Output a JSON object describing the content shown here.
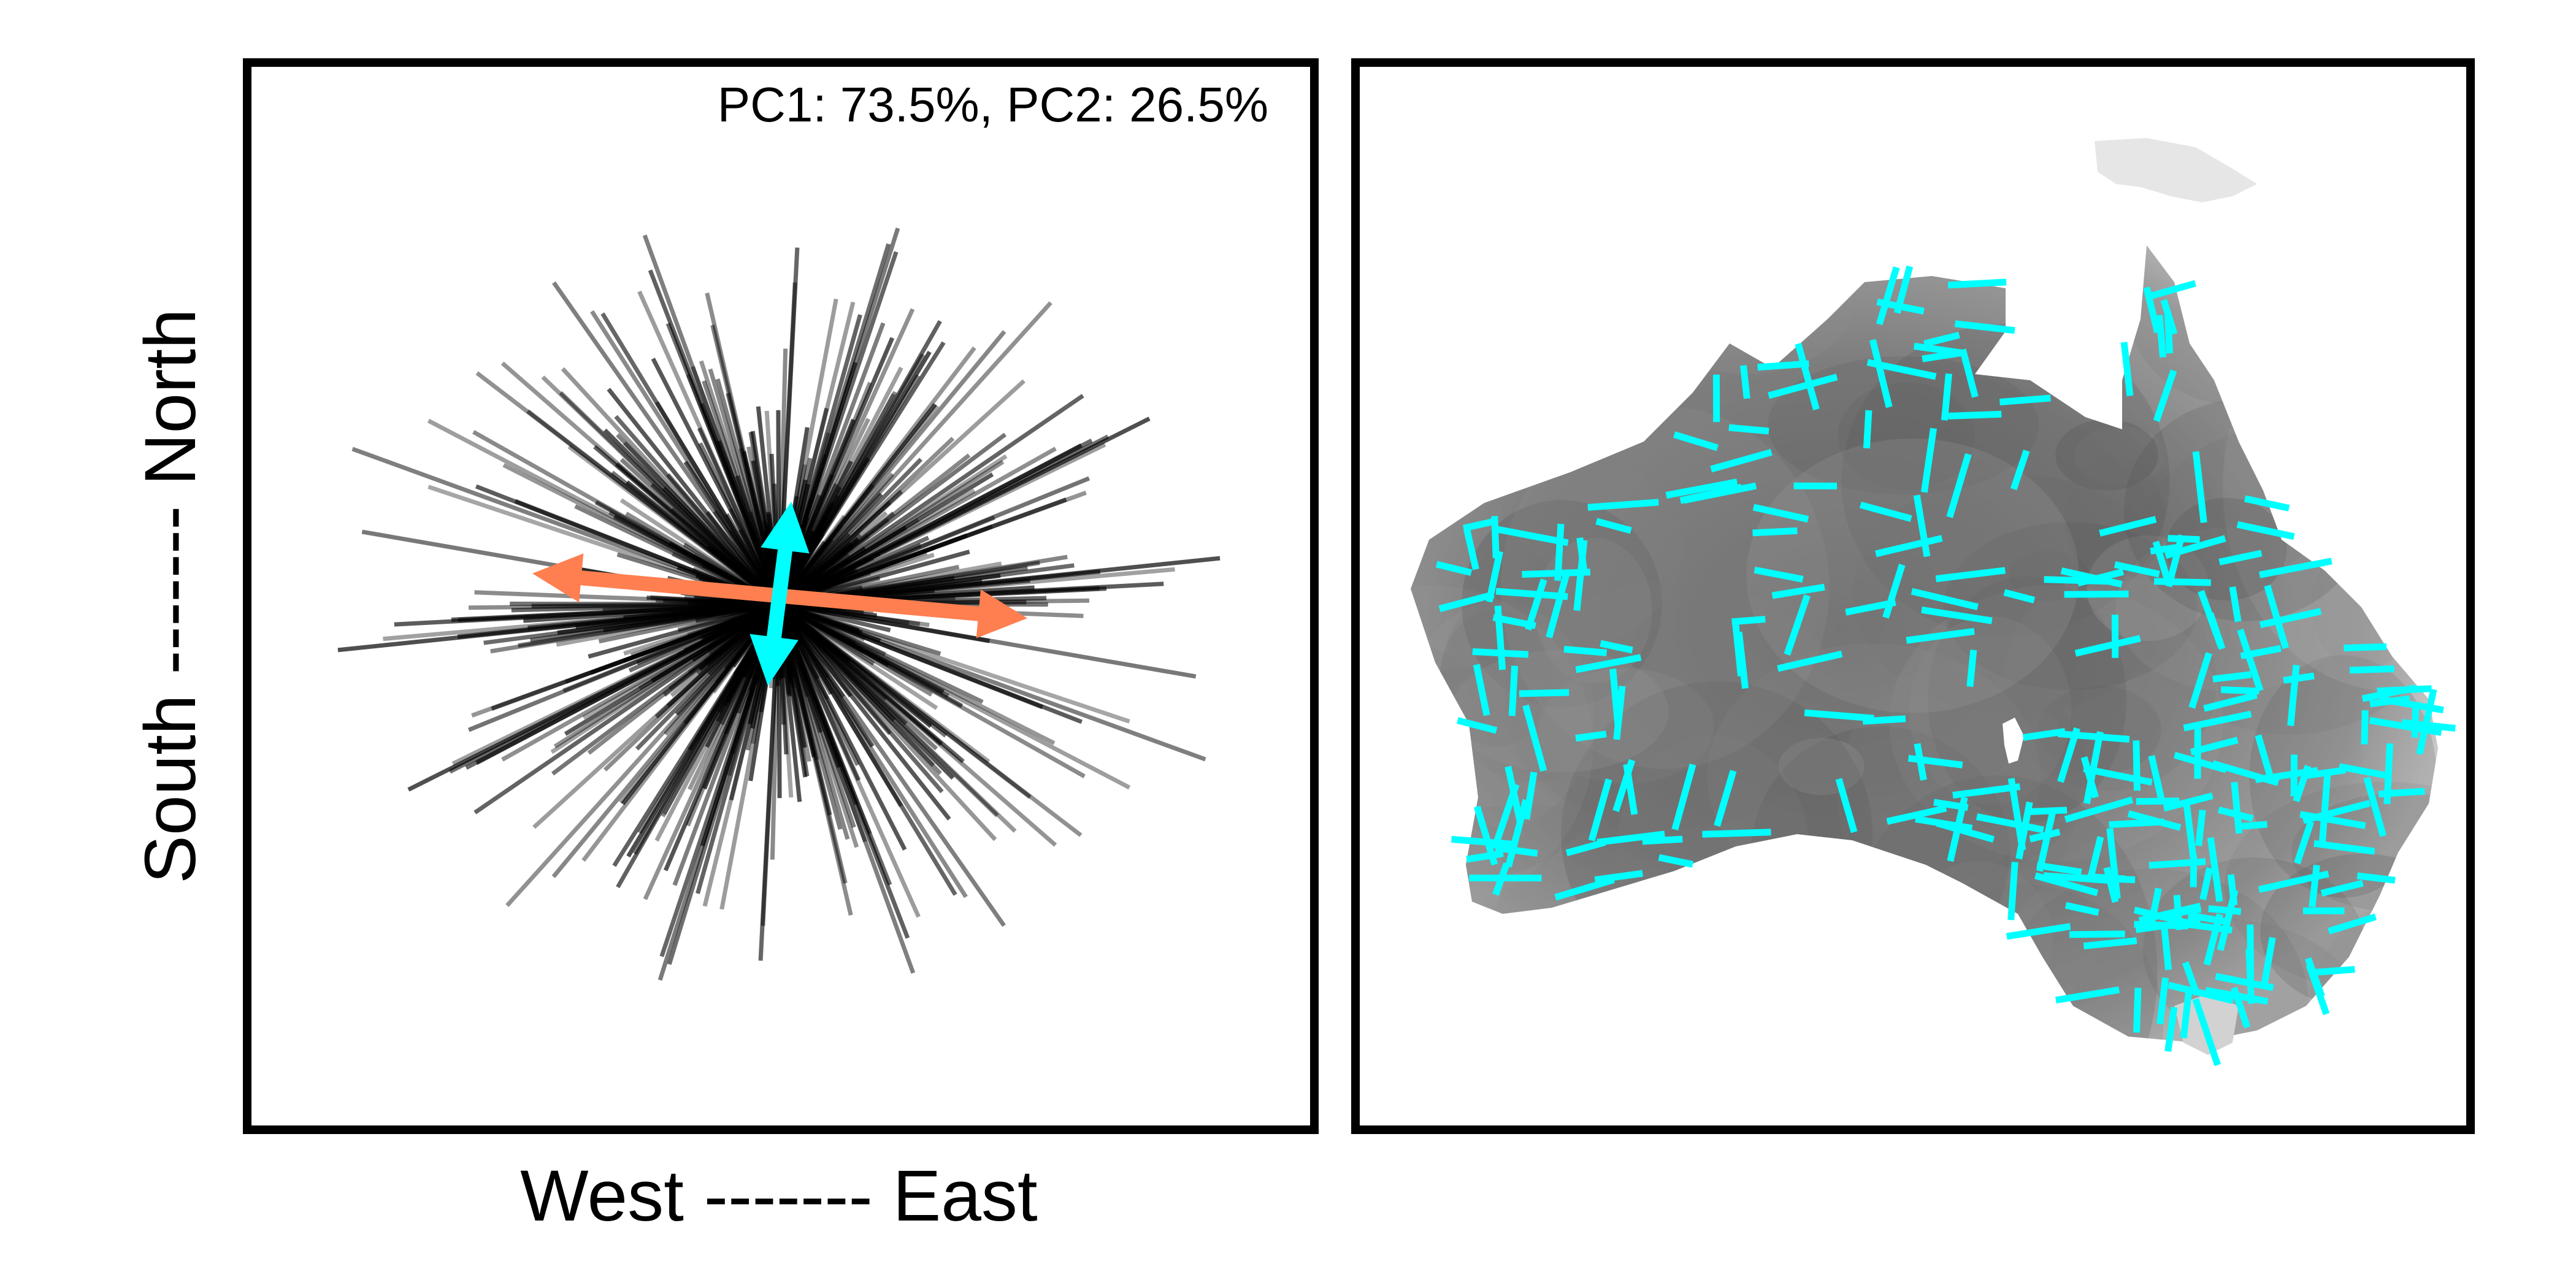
{
  "chart_data": [
    {
      "type": "scatter",
      "panel": "left",
      "annotation": "PC1: 73.5%, PC2: 26.5%",
      "xlabel": "West ------- East",
      "ylabel": "South ------- North",
      "pc1_percent": 73.5,
      "pc2_percent": 26.5,
      "ray_color": "#000000",
      "pc1_arrow_color": "#FF7F50",
      "pc2_arrow_color": "#00FFFF",
      "grid": false
    },
    {
      "type": "scatter",
      "panel": "right",
      "map": "Australia",
      "map_shading": "grayscale",
      "segment_color": "#00FFFF",
      "grid": false
    }
  ]
}
